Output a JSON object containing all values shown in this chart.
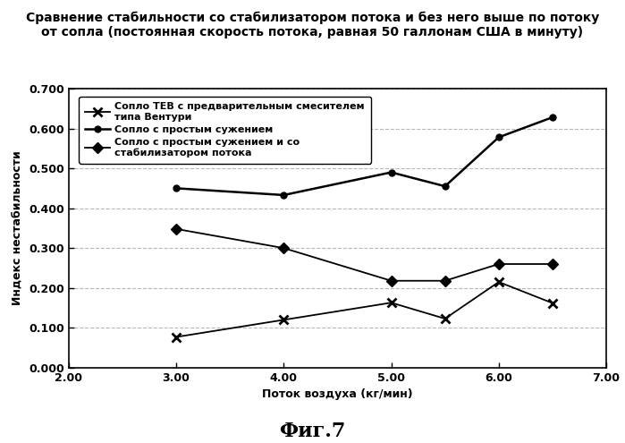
{
  "title_line1": "Сравнение стабильности со стабилизатором потока и без него выше по потоку",
  "title_line2": "от сопла (постоянная скорость потока, равная 50 галлонам США в минуту)",
  "xlabel": "Поток воздуха (кг/мин)",
  "ylabel": "Индекс нестабильности",
  "fig_label": "Фиг.7",
  "xlim": [
    2.0,
    7.0
  ],
  "ylim": [
    0.0,
    0.7
  ],
  "xticks": [
    2.0,
    3.0,
    4.0,
    5.0,
    6.0,
    7.0
  ],
  "yticks": [
    0.0,
    0.1,
    0.2,
    0.3,
    0.4,
    0.5,
    0.6,
    0.7
  ],
  "series": [
    {
      "label1": "Сопло ТЕВ с предварительным смесителем",
      "label2": "типа Вентури",
      "x": [
        3.0,
        4.0,
        5.0,
        5.5,
        6.0,
        6.5
      ],
      "y": [
        0.077,
        0.12,
        0.163,
        0.123,
        0.215,
        0.162
      ],
      "marker": "x",
      "markersize": 7,
      "linewidth": 1.3,
      "filled": false
    },
    {
      "label1": "Сопло с простым сужением",
      "label2": "",
      "x": [
        3.0,
        4.0,
        5.0,
        5.5,
        6.0,
        6.5
      ],
      "y": [
        0.45,
        0.433,
        0.49,
        0.455,
        0.578,
        0.628
      ],
      "marker": "o",
      "markersize": 5,
      "linewidth": 1.8,
      "filled": true
    },
    {
      "label1": "Сопло с простым сужением и со",
      "label2": "стабилизатором потока",
      "x": [
        3.0,
        4.0,
        5.0,
        5.5,
        6.0,
        6.5
      ],
      "y": [
        0.348,
        0.3,
        0.218,
        0.218,
        0.26,
        0.26
      ],
      "marker": "D",
      "markersize": 6,
      "linewidth": 1.3,
      "filled": true
    }
  ],
  "grid_color": "#888888",
  "grid_linestyle": "--",
  "grid_alpha": 0.6,
  "background_color": "#ffffff",
  "legend_fontsize": 8,
  "axis_label_fontsize": 9,
  "title_fontsize": 10,
  "tick_fontsize": 9,
  "fig_label_fontsize": 16
}
